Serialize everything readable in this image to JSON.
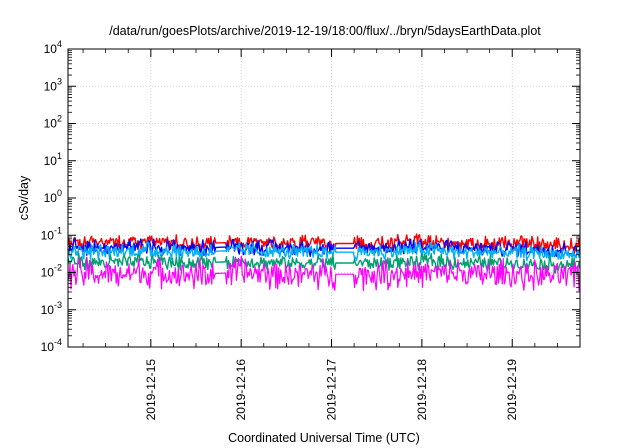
{
  "chart_data": {
    "type": "line",
    "title": "/data/run/goesPlots/archive/2019-12-19/18:00/flux/../bryn/5daysEarthData.plot",
    "xlabel": "Coordinated Universal Time (UTC)",
    "ylabel": "cSv/day",
    "yscale": "log",
    "ylim": [
      0.0001,
      10000
    ],
    "y_ticks": [
      {
        "base": "10",
        "exp": "-4",
        "value": 0.0001
      },
      {
        "base": "10",
        "exp": "-3",
        "value": 0.001
      },
      {
        "base": "10",
        "exp": "-2",
        "value": 0.01
      },
      {
        "base": "10",
        "exp": "-1",
        "value": 0.1
      },
      {
        "base": "10",
        "exp": "0",
        "value": 1
      },
      {
        "base": "10",
        "exp": "1",
        "value": 10
      },
      {
        "base": "10",
        "exp": "2",
        "value": 100
      },
      {
        "base": "10",
        "exp": "3",
        "value": 1000
      },
      {
        "base": "10",
        "exp": "4",
        "value": 10000
      }
    ],
    "xlim": [
      "2019-12-14T02:00",
      "2019-12-19T18:00"
    ],
    "x_ticks": [
      "2019-12-15",
      "2019-12-16",
      "2019-12-17",
      "2019-12-18",
      "2019-12-19"
    ],
    "grid": true,
    "legend": "none",
    "gaps": [
      [
        "2019-12-15T17:00",
        "2019-12-15T20:00"
      ],
      [
        "2019-12-17T01:00",
        "2019-12-17T06:00"
      ]
    ],
    "series": [
      {
        "color": "#ff0000",
        "values": [
          {
            "x": "2019-12-14T02:00",
            "y": 0.065
          },
          {
            "x": "2019-12-14T12:00",
            "y": 0.06
          },
          {
            "x": "2019-12-15T00:00",
            "y": 0.07
          },
          {
            "x": "2019-12-15T12:00",
            "y": 0.06
          },
          {
            "x": "2019-12-16T00:00",
            "y": 0.065
          },
          {
            "x": "2019-12-16T12:00",
            "y": 0.06
          },
          {
            "x": "2019-12-17T00:00",
            "y": 0.06
          },
          {
            "x": "2019-12-17T12:00",
            "y": 0.06
          },
          {
            "x": "2019-12-18T00:00",
            "y": 0.065
          },
          {
            "x": "2019-12-18T12:00",
            "y": 0.06
          },
          {
            "x": "2019-12-19T00:00",
            "y": 0.06
          },
          {
            "x": "2019-12-19T18:00",
            "y": 0.05
          }
        ]
      },
      {
        "color": "#0000ff",
        "values": [
          {
            "x": "2019-12-14T02:00",
            "y": 0.05
          },
          {
            "x": "2019-12-14T12:00",
            "y": 0.045
          },
          {
            "x": "2019-12-15T00:00",
            "y": 0.05
          },
          {
            "x": "2019-12-15T12:00",
            "y": 0.045
          },
          {
            "x": "2019-12-16T00:00",
            "y": 0.05
          },
          {
            "x": "2019-12-16T12:00",
            "y": 0.045
          },
          {
            "x": "2019-12-17T00:00",
            "y": 0.045
          },
          {
            "x": "2019-12-17T12:00",
            "y": 0.045
          },
          {
            "x": "2019-12-18T00:00",
            "y": 0.05
          },
          {
            "x": "2019-12-18T12:00",
            "y": 0.045
          },
          {
            "x": "2019-12-19T00:00",
            "y": 0.045
          },
          {
            "x": "2019-12-19T18:00",
            "y": 0.038
          }
        ]
      },
      {
        "color": "#00b0ff",
        "values": [
          {
            "x": "2019-12-14T02:00",
            "y": 0.04
          },
          {
            "x": "2019-12-14T12:00",
            "y": 0.035
          },
          {
            "x": "2019-12-15T00:00",
            "y": 0.04
          },
          {
            "x": "2019-12-15T12:00",
            "y": 0.035
          },
          {
            "x": "2019-12-16T00:00",
            "y": 0.04
          },
          {
            "x": "2019-12-16T12:00",
            "y": 0.035
          },
          {
            "x": "2019-12-17T00:00",
            "y": 0.035
          },
          {
            "x": "2019-12-17T12:00",
            "y": 0.035
          },
          {
            "x": "2019-12-18T00:00",
            "y": 0.04
          },
          {
            "x": "2019-12-18T12:00",
            "y": 0.035
          },
          {
            "x": "2019-12-19T00:00",
            "y": 0.035
          },
          {
            "x": "2019-12-19T18:00",
            "y": 0.03
          }
        ]
      },
      {
        "color": "#00a070",
        "values": [
          {
            "x": "2019-12-14T02:00",
            "y": 0.02
          },
          {
            "x": "2019-12-14T12:00",
            "y": 0.018
          },
          {
            "x": "2019-12-15T00:00",
            "y": 0.02
          },
          {
            "x": "2019-12-15T12:00",
            "y": 0.018
          },
          {
            "x": "2019-12-16T00:00",
            "y": 0.02
          },
          {
            "x": "2019-12-16T12:00",
            "y": 0.018
          },
          {
            "x": "2019-12-17T00:00",
            "y": 0.018
          },
          {
            "x": "2019-12-17T12:00",
            "y": 0.018
          },
          {
            "x": "2019-12-18T00:00",
            "y": 0.02
          },
          {
            "x": "2019-12-18T12:00",
            "y": 0.018
          },
          {
            "x": "2019-12-19T00:00",
            "y": 0.018
          },
          {
            "x": "2019-12-19T18:00",
            "y": 0.015
          }
        ]
      },
      {
        "color": "#ff00ff",
        "values": [
          {
            "x": "2019-12-14T02:00",
            "y": 0.01
          },
          {
            "x": "2019-12-14T12:00",
            "y": 0.009
          },
          {
            "x": "2019-12-15T00:00",
            "y": 0.01
          },
          {
            "x": "2019-12-15T12:00",
            "y": 0.009
          },
          {
            "x": "2019-12-16T00:00",
            "y": 0.01
          },
          {
            "x": "2019-12-16T12:00",
            "y": 0.009
          },
          {
            "x": "2019-12-17T00:00",
            "y": 0.009
          },
          {
            "x": "2019-12-17T12:00",
            "y": 0.009
          },
          {
            "x": "2019-12-18T00:00",
            "y": 0.01
          },
          {
            "x": "2019-12-18T12:00",
            "y": 0.009
          },
          {
            "x": "2019-12-19T00:00",
            "y": 0.009
          },
          {
            "x": "2019-12-19T18:00",
            "y": 0.008
          }
        ]
      }
    ]
  }
}
